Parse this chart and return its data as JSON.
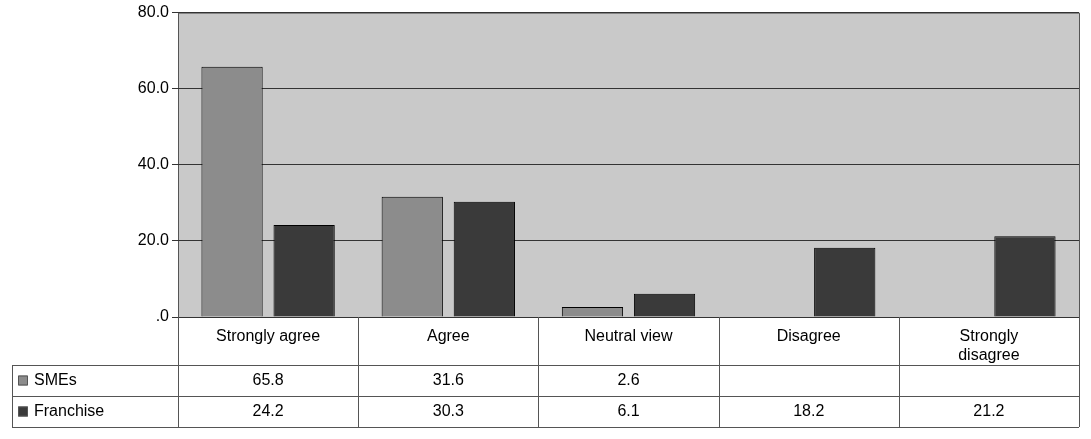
{
  "chart_data": {
    "type": "bar",
    "categories": [
      "Strongly agree",
      "Agree",
      "Neutral view",
      "Disagree",
      "Strongly disagree"
    ],
    "series": [
      {
        "name": "SMEs",
        "color": "#8c8c8c",
        "values": [
          65.8,
          31.6,
          2.6,
          null,
          null
        ]
      },
      {
        "name": "Franchise",
        "color": "#3a3a3a",
        "values": [
          24.2,
          30.3,
          6.1,
          18.2,
          21.2
        ]
      }
    ],
    "ylim": [
      0,
      80
    ],
    "yticks": [
      {
        "value": 0,
        "label": ".0"
      },
      {
        "value": 20,
        "label": "20.0"
      },
      {
        "value": 40,
        "label": "40.0"
      },
      {
        "value": 60,
        "label": "60.0"
      },
      {
        "value": 80,
        "label": "80.0"
      }
    ],
    "grid": "y",
    "legend": "bottom",
    "data_labels": true
  }
}
